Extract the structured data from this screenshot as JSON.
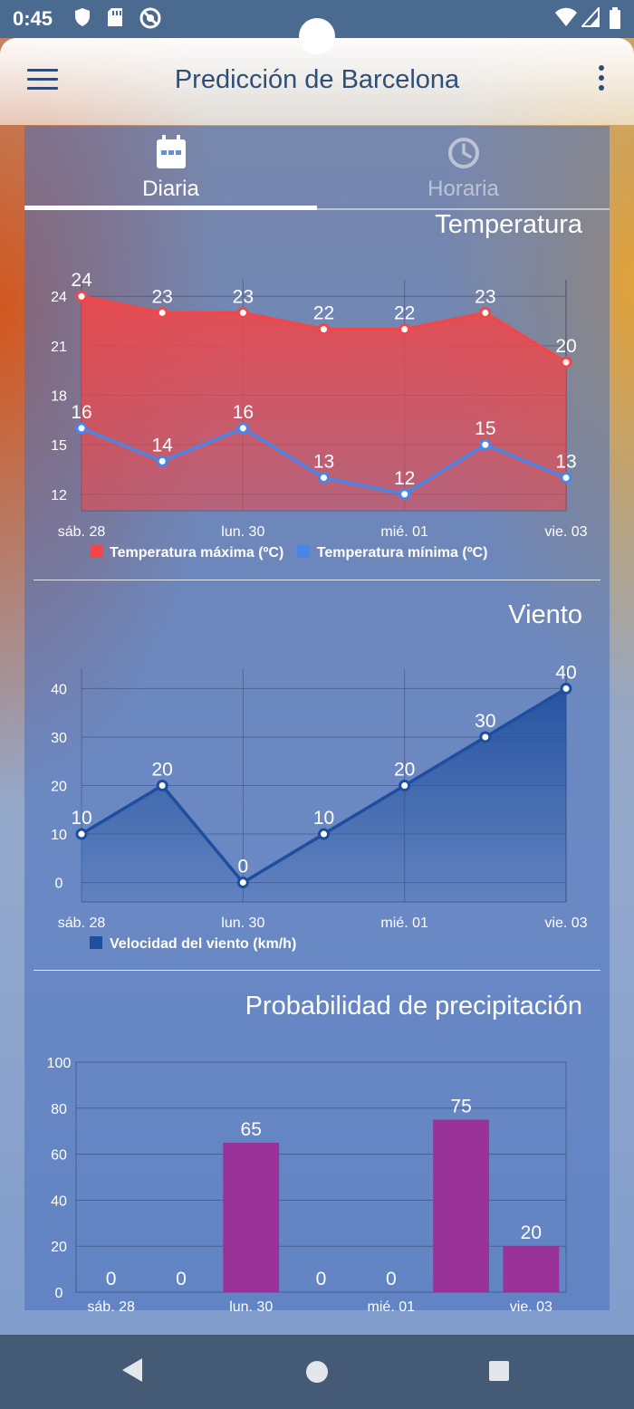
{
  "status_bar": {
    "time": "0:45"
  },
  "header": {
    "title": "Predicción de Barcelona"
  },
  "tabs": [
    {
      "label": "Diaria",
      "icon": "calendar-icon",
      "selected": true
    },
    {
      "label": "Horaria",
      "icon": "clock-icon",
      "selected": false
    }
  ],
  "sections": {
    "temperature": "Temperatura",
    "wind": "Viento",
    "precipitation": "Probabilidad de precipitación"
  },
  "colors": {
    "max_temp": "#f0474a",
    "min_temp": "#4a86e8",
    "wind": "#1e4e9e",
    "precip": "#993399"
  },
  "chart_data": [
    {
      "type": "line",
      "title": "Temperatura",
      "x_ticks": [
        "sáb. 28",
        "lun. 30",
        "mié. 01",
        "vie. 03"
      ],
      "ylim": [
        11,
        25
      ],
      "y_ticks": [
        12,
        15,
        18,
        21,
        24
      ],
      "grid": true,
      "legend": "bottom-left",
      "series": [
        {
          "name": "Temperatura máxima (ºC)",
          "values": [
            24,
            23,
            23,
            22,
            22,
            23,
            20
          ],
          "fill": true
        },
        {
          "name": "Temperatura mínima (ºC)",
          "values": [
            16,
            14,
            16,
            13,
            12,
            15,
            13
          ],
          "fill": false
        }
      ]
    },
    {
      "type": "area",
      "title": "Viento",
      "x_ticks": [
        "sáb. 28",
        "lun. 30",
        "mié. 01",
        "vie. 03"
      ],
      "ylim": [
        -4,
        44
      ],
      "y_ticks": [
        0,
        10,
        20,
        30,
        40
      ],
      "grid": true,
      "legend": "bottom-left",
      "series": [
        {
          "name": "Velocidad del viento (km/h)",
          "values": [
            10,
            20,
            0,
            10,
            20,
            30,
            40
          ]
        }
      ]
    },
    {
      "type": "bar",
      "title": "Probabilidad de precipitación",
      "x_ticks": [
        "sáb. 28",
        "lun. 30",
        "mié. 01",
        "vie. 03"
      ],
      "ylim": [
        0,
        100
      ],
      "y_ticks": [
        0,
        20,
        40,
        60,
        80,
        100
      ],
      "grid": true,
      "values": [
        0,
        0,
        65,
        0,
        0,
        75,
        20
      ]
    }
  ]
}
